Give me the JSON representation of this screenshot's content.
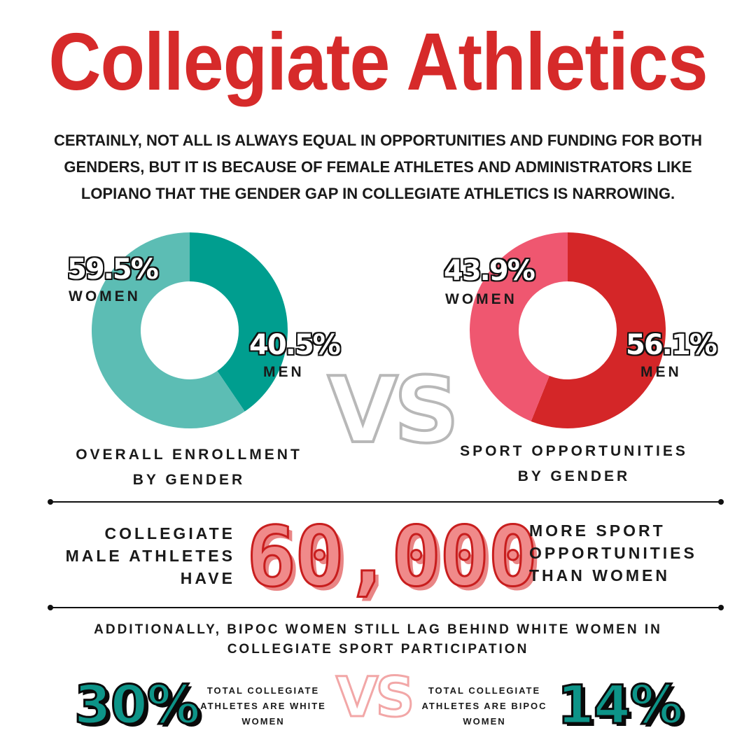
{
  "title": "Collegiate Athletics",
  "intro": "CERTAINLY, NOT ALL IS ALWAYS EQUAL IN OPPORTUNITIES AND FUNDING FOR BOTH GENDERS, BUT IT IS BECAUSE OF FEMALE ATHLETES AND ADMINISTRATORS LIKE LOPIANO THAT THE GENDER GAP IN COLLEGIATE ATHLETICS IS NARROWING.",
  "vs_label": "VS",
  "colors": {
    "teal_dark": "#009e8f",
    "teal_light": "#5cbdb4",
    "red_dark": "#d42628",
    "red_light": "#ef5770"
  },
  "chart_data": [
    {
      "type": "pie",
      "caption_line1": "OVERALL ENROLLMENT",
      "caption_line2": "BY GENDER",
      "slices": [
        {
          "label": "WOMEN",
          "value": 59.5,
          "display": "59.5%",
          "color": "#5cbdb4"
        },
        {
          "label": "MEN",
          "value": 40.5,
          "display": "40.5%",
          "color": "#009e8f"
        }
      ]
    },
    {
      "type": "pie",
      "caption_line1": "SPORT OPPORTUNITIES",
      "caption_line2": "BY GENDER",
      "slices": [
        {
          "label": "WOMEN",
          "value": 43.9,
          "display": "43.9%",
          "color": "#ef5770"
        },
        {
          "label": "MEN",
          "value": 56.1,
          "display": "56.1%",
          "color": "#d42628"
        }
      ]
    }
  ],
  "highlight": {
    "left_line1": "COLLEGIATE",
    "left_line2": "MALE ATHLETES",
    "left_line3": "HAVE",
    "number": "60,000",
    "right_line1": "MORE SPORT",
    "right_line2": "OPPORTUNITIES",
    "right_line3": "THAN WOMEN"
  },
  "additional": {
    "line1": "ADDITIONALLY, BIPOC WOMEN STILL LAG BEHIND WHITE WOMEN IN",
    "line2": "COLLEGIATE SPORT PARTICIPATION"
  },
  "comparison": {
    "white_pct": "30%",
    "white_line1": "TOTAL COLLEGIATE",
    "white_line2": "ATHLETES ARE WHITE",
    "white_line3": "WOMEN",
    "bipoc_line1": "TOTAL COLLEGIATE",
    "bipoc_line2": "ATHLETES ARE BIPOC",
    "bipoc_line3": "WOMEN",
    "bipoc_pct": "14%"
  }
}
